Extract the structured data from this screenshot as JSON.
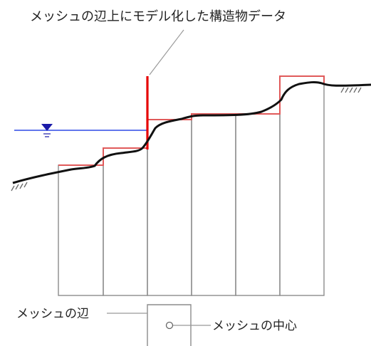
{
  "labels": {
    "structure_data": "メッシュの辺上にモデル化した構造物データ",
    "mesh_edge": "メッシュの辺",
    "mesh_center": "メッシュの中心"
  },
  "colors": {
    "background": "#ffffff",
    "mesh_outline": "#8c8c8c",
    "structure_line": "#e05a5a",
    "structure_highlight": "#e60000",
    "ground_line": "#111111",
    "water_line": "#2d49e6",
    "water_symbol": "#1a1aa8",
    "leader_line": "#999999",
    "hatch": "#666666"
  },
  "icons": {
    "water_level": "inverted-triangle-water-level-icon",
    "ground_hatch": "ground-hatch-icon",
    "mesh_center_marker": "circle-marker-icon"
  }
}
